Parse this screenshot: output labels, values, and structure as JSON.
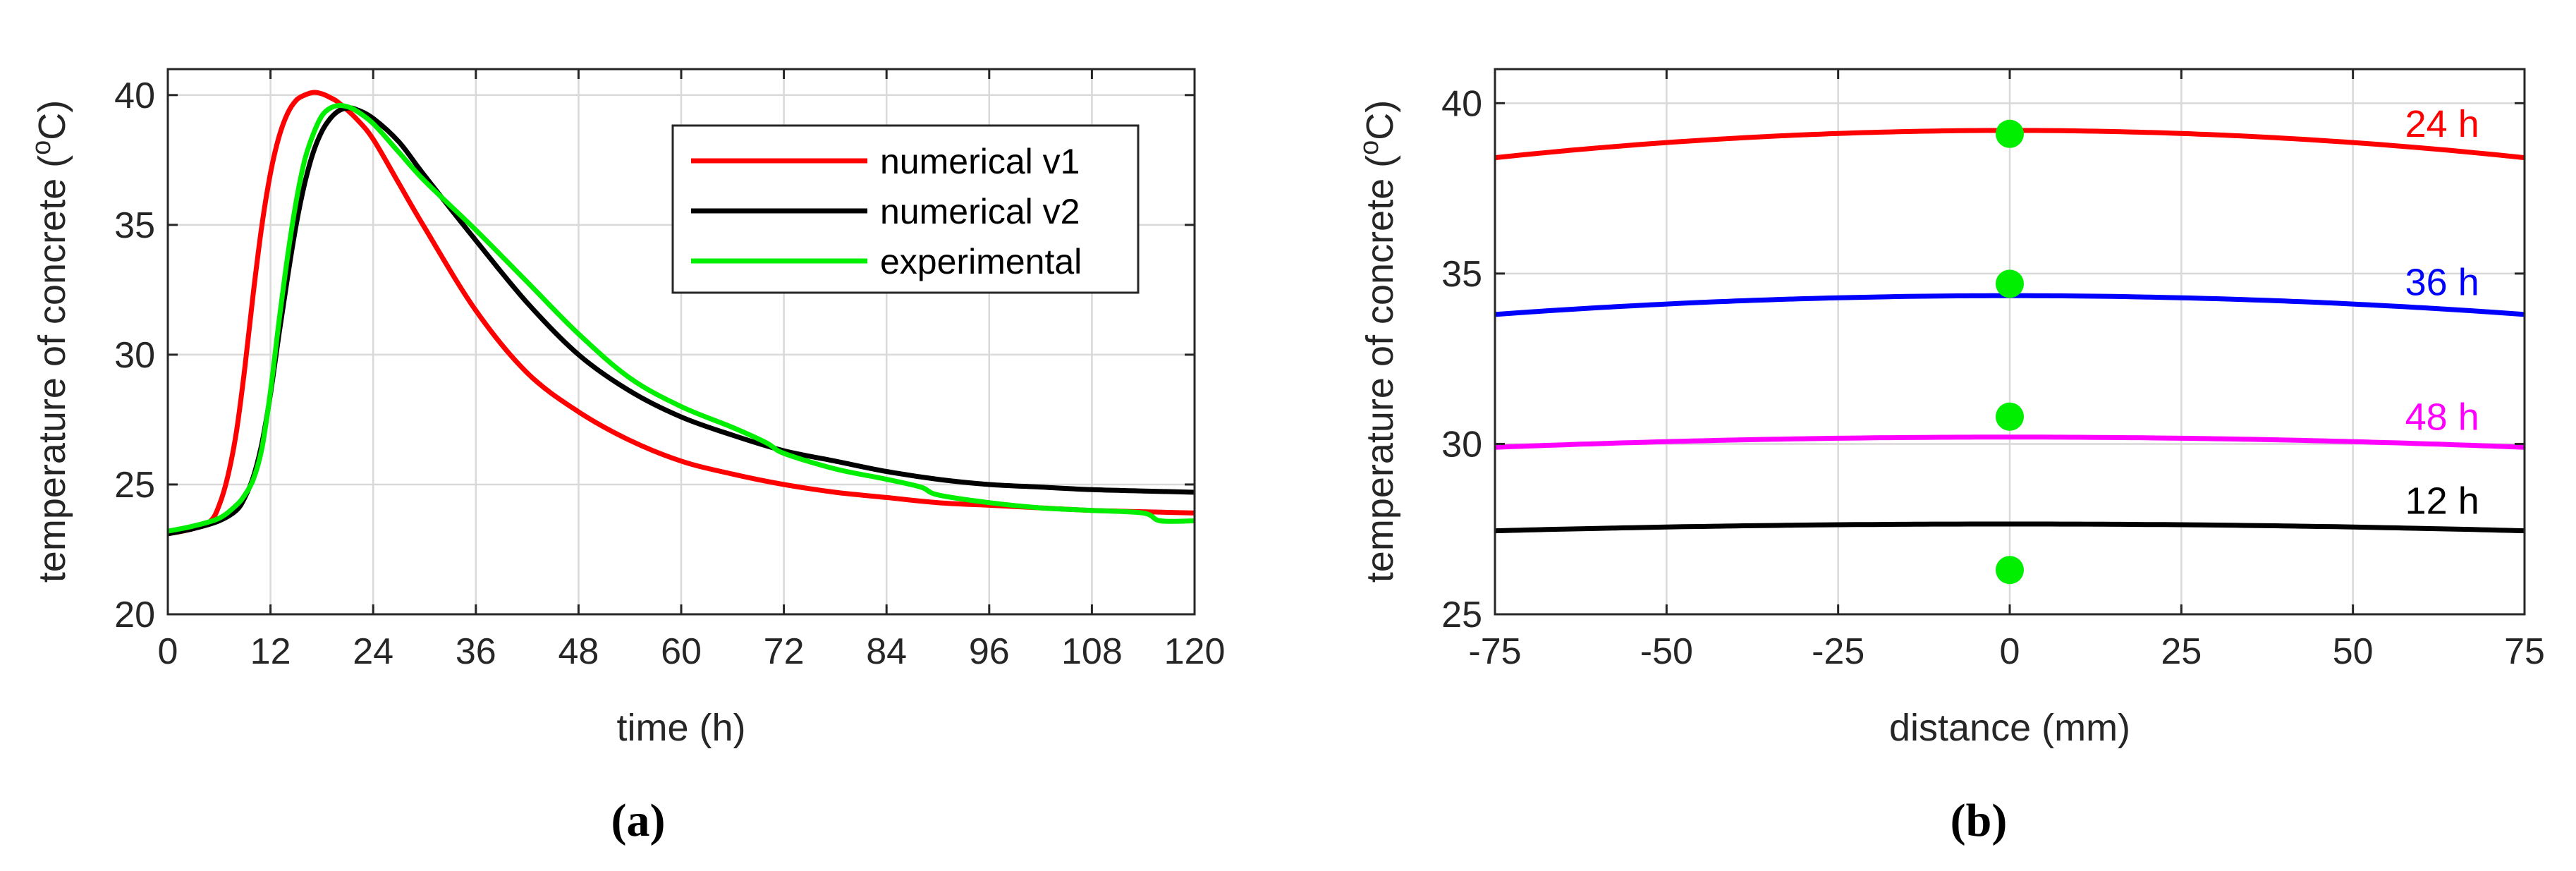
{
  "chart_data": [
    {
      "type": "line",
      "caption": "(a)",
      "xlabel": "time (h)",
      "ylabel_main": "temperature of concrete (",
      "ylabel_sup": "o",
      "ylabel_tail": "C)",
      "xlim": [
        0,
        120
      ],
      "ylim": [
        20,
        41
      ],
      "xticks": [
        "0",
        "12",
        "24",
        "36",
        "48",
        "60",
        "72",
        "84",
        "96",
        "108",
        "120"
      ],
      "yticks": [
        "20",
        "25",
        "30",
        "35",
        "40"
      ],
      "grid": true,
      "legend_position": "top-right",
      "series": [
        {
          "name": "numerical v1",
          "color": "#ff0000",
          "x": [
            0,
            3,
            5,
            6,
            7,
            8,
            9,
            10,
            11,
            12,
            13,
            14,
            15,
            16,
            17,
            18,
            19,
            20,
            22,
            24,
            27,
            30,
            36,
            42,
            48,
            54,
            60,
            66,
            72,
            78,
            84,
            90,
            96,
            102,
            108,
            114,
            120
          ],
          "y": [
            23.1,
            23.3,
            23.6,
            24.2,
            25.3,
            27.0,
            29.5,
            32.4,
            35.0,
            37.0,
            38.4,
            39.3,
            39.8,
            40.0,
            40.1,
            40.05,
            39.9,
            39.7,
            39.1,
            38.3,
            36.6,
            34.9,
            31.7,
            29.3,
            27.8,
            26.7,
            25.9,
            25.4,
            25.0,
            24.7,
            24.5,
            24.3,
            24.2,
            24.1,
            24.0,
            23.95,
            23.9
          ]
        },
        {
          "name": "numerical v2",
          "color": "#000000",
          "x": [
            0,
            3,
            6,
            8,
            9,
            10,
            11,
            12,
            13,
            14,
            15,
            16,
            17,
            18,
            19,
            20,
            21,
            22,
            24,
            27,
            30,
            36,
            42,
            48,
            54,
            60,
            66,
            72,
            78,
            84,
            90,
            96,
            102,
            108,
            114,
            120
          ],
          "y": [
            23.1,
            23.3,
            23.6,
            24.0,
            24.5,
            25.3,
            26.6,
            28.5,
            30.8,
            33.0,
            35.0,
            36.6,
            37.8,
            38.6,
            39.1,
            39.4,
            39.5,
            39.45,
            39.1,
            38.2,
            36.9,
            34.4,
            32.0,
            30.0,
            28.6,
            27.6,
            26.9,
            26.3,
            25.9,
            25.5,
            25.2,
            25.0,
            24.9,
            24.8,
            24.75,
            24.7
          ]
        },
        {
          "name": "experimental",
          "color": "#00ee00",
          "x": [
            0,
            3,
            6,
            8,
            9,
            10,
            11,
            12,
            13,
            14,
            15,
            16,
            17,
            18,
            19,
            20,
            21,
            22,
            24,
            27,
            30,
            36,
            42,
            48,
            54,
            60,
            66,
            70,
            72,
            78,
            84,
            88,
            90,
            96,
            102,
            108,
            114,
            116,
            120
          ],
          "y": [
            23.2,
            23.4,
            23.7,
            24.2,
            24.6,
            25.2,
            26.4,
            28.6,
            31.3,
            33.8,
            35.9,
            37.5,
            38.5,
            39.2,
            39.5,
            39.6,
            39.55,
            39.4,
            38.9,
            37.8,
            36.7,
            34.8,
            32.8,
            30.8,
            29.1,
            28.0,
            27.2,
            26.6,
            26.2,
            25.6,
            25.2,
            24.9,
            24.6,
            24.3,
            24.1,
            24.0,
            23.9,
            23.6,
            23.6
          ]
        }
      ]
    },
    {
      "type": "line",
      "caption": "(b)",
      "xlabel": "distance (mm)",
      "ylabel_main": "temperature of concrete (",
      "ylabel_sup": "o",
      "ylabel_tail": "C)",
      "xlim": [
        -75,
        75
      ],
      "ylim": [
        25,
        41
      ],
      "xticks": [
        "-75",
        "-50",
        "-25",
        "0",
        "25",
        "50",
        "75"
      ],
      "yticks": [
        "25",
        "30",
        "35",
        "40"
      ],
      "grid": true,
      "series": [
        {
          "name": "24 h",
          "color": "#ff0000",
          "edge": 38.4,
          "center": 39.2,
          "point": 39.1
        },
        {
          "name": "36 h",
          "color": "#0000ff",
          "edge": 33.8,
          "center": 34.35,
          "point": 34.7
        },
        {
          "name": "48 h",
          "color": "#ff00ff",
          "edge": 29.9,
          "center": 30.2,
          "point": 30.8
        },
        {
          "name": "12 h",
          "color": "#000000",
          "edge": 27.45,
          "center": 27.65,
          "point": 26.3
        }
      ],
      "point_color": "#00ee00"
    }
  ]
}
